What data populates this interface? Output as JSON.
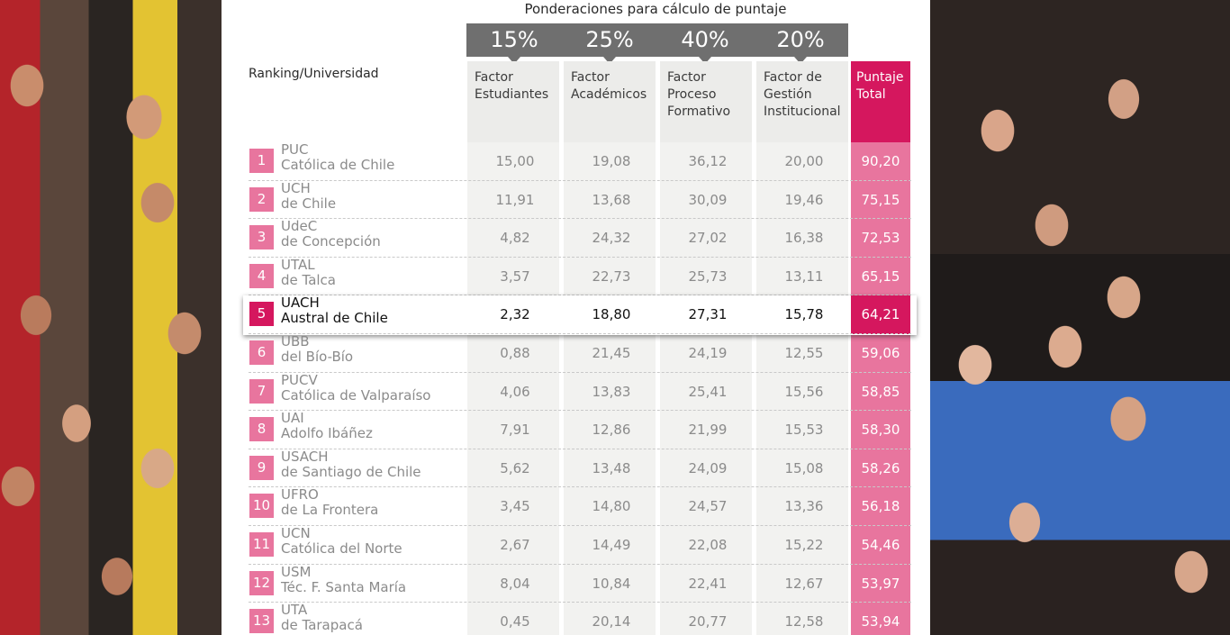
{
  "header": {
    "weights_title": "Ponderaciones para cálculo de puntaje",
    "ranking_label": "Ranking/Universidad"
  },
  "weights": [
    "15%",
    "25%",
    "40%",
    "20%"
  ],
  "columns": [
    {
      "line1": "Factor",
      "line2": "Estudiantes",
      "line3": ""
    },
    {
      "line1": "Factor",
      "line2": "Académicos",
      "line3": ""
    },
    {
      "line1": "Factor",
      "line2": "Proceso",
      "line3": "Formativo"
    },
    {
      "line1": "Factor de",
      "line2": "Gestión",
      "line3": "Institucional"
    },
    {
      "line1": "Puntaje",
      "line2": "Total",
      "line3": ""
    }
  ],
  "rows": [
    {
      "rank": "1",
      "abbr": "PUC",
      "name": "Católica de Chile",
      "v": [
        "15,00",
        "19,08",
        "36,12",
        "20,00",
        "90,20"
      ]
    },
    {
      "rank": "2",
      "abbr": "UCH",
      "name": "de Chile",
      "v": [
        "11,91",
        "13,68",
        "30,09",
        "19,46",
        "75,15"
      ]
    },
    {
      "rank": "3",
      "abbr": "UdeC",
      "name": "de Concepción",
      "v": [
        "4,82",
        "24,32",
        "27,02",
        "16,38",
        "72,53"
      ]
    },
    {
      "rank": "4",
      "abbr": "UTAL",
      "name": "de Talca",
      "v": [
        "3,57",
        "22,73",
        "25,73",
        "13,11",
        "65,15"
      ]
    },
    {
      "rank": "5",
      "abbr": "UACH",
      "name": "Austral de Chile",
      "v": [
        "2,32",
        "18,80",
        "27,31",
        "15,78",
        "64,21"
      ]
    },
    {
      "rank": "6",
      "abbr": "UBB",
      "name": "del Bío-Bío",
      "v": [
        "0,88",
        "21,45",
        "24,19",
        "12,55",
        "59,06"
      ]
    },
    {
      "rank": "7",
      "abbr": "PUCV",
      "name": "Católica de Valparaíso",
      "v": [
        "4,06",
        "13,83",
        "25,41",
        "15,56",
        "58,85"
      ]
    },
    {
      "rank": "8",
      "abbr": "UAI",
      "name": "Adolfo Ibáñez",
      "v": [
        "7,91",
        "12,86",
        "21,99",
        "15,53",
        "58,30"
      ]
    },
    {
      "rank": "9",
      "abbr": "USACH",
      "name": "de Santiago de Chile",
      "v": [
        "5,62",
        "13,48",
        "24,09",
        "15,08",
        "58,26"
      ]
    },
    {
      "rank": "10",
      "abbr": "UFRO",
      "name": "de La Frontera",
      "v": [
        "3,45",
        "14,80",
        "24,57",
        "13,36",
        "56,18"
      ]
    },
    {
      "rank": "11",
      "abbr": "UCN",
      "name": "Católica del Norte",
      "v": [
        "2,67",
        "14,49",
        "22,08",
        "15,22",
        "54,46"
      ]
    },
    {
      "rank": "12",
      "abbr": "USM",
      "name": "Téc. F. Santa María",
      "v": [
        "8,04",
        "10,84",
        "22,41",
        "12,67",
        "53,97"
      ]
    },
    {
      "rank": "13",
      "abbr": "UTA",
      "name": "de Tarapacá",
      "v": [
        "0,45",
        "20,14",
        "20,77",
        "12,58",
        "53,94"
      ]
    }
  ],
  "colors": {
    "accent": "#d5175e",
    "accent_light": "#e8759e",
    "weight_bar": "#6f6f6f"
  }
}
